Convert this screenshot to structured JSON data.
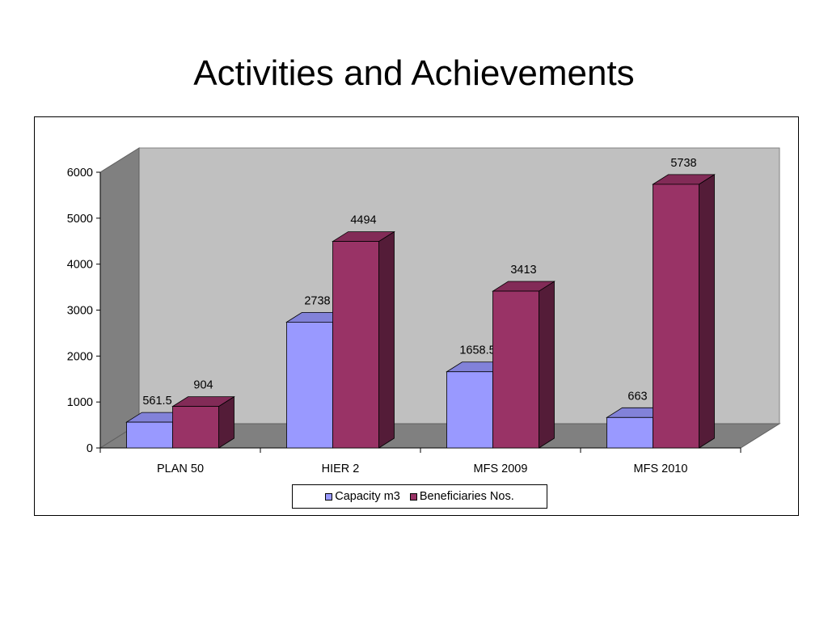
{
  "slide": {
    "title": "Activities and Achievements"
  },
  "chart_data": {
    "type": "bar",
    "title": "",
    "xlabel": "",
    "ylabel": "",
    "ylim": [
      0,
      6000
    ],
    "yticks": [
      0,
      1000,
      2000,
      3000,
      4000,
      5000,
      6000
    ],
    "grid": false,
    "style": "3d-clustered-column",
    "legend_position": "bottom",
    "categories": [
      "PLAN 50",
      "HIER 2",
      "MFS 2009",
      "MFS 2010"
    ],
    "series": [
      {
        "name": "Capacity m3",
        "values": [
          561.5,
          2738,
          1658.5,
          663
        ],
        "labels": [
          "561.5",
          "2738",
          "1658.5",
          "663"
        ],
        "color": "#9999ff"
      },
      {
        "name": "Beneficiaries Nos.",
        "values": [
          904,
          4494,
          3413,
          5738
        ],
        "labels": [
          "904",
          "4494",
          "3413",
          "5738"
        ],
        "color": "#993366"
      }
    ]
  }
}
